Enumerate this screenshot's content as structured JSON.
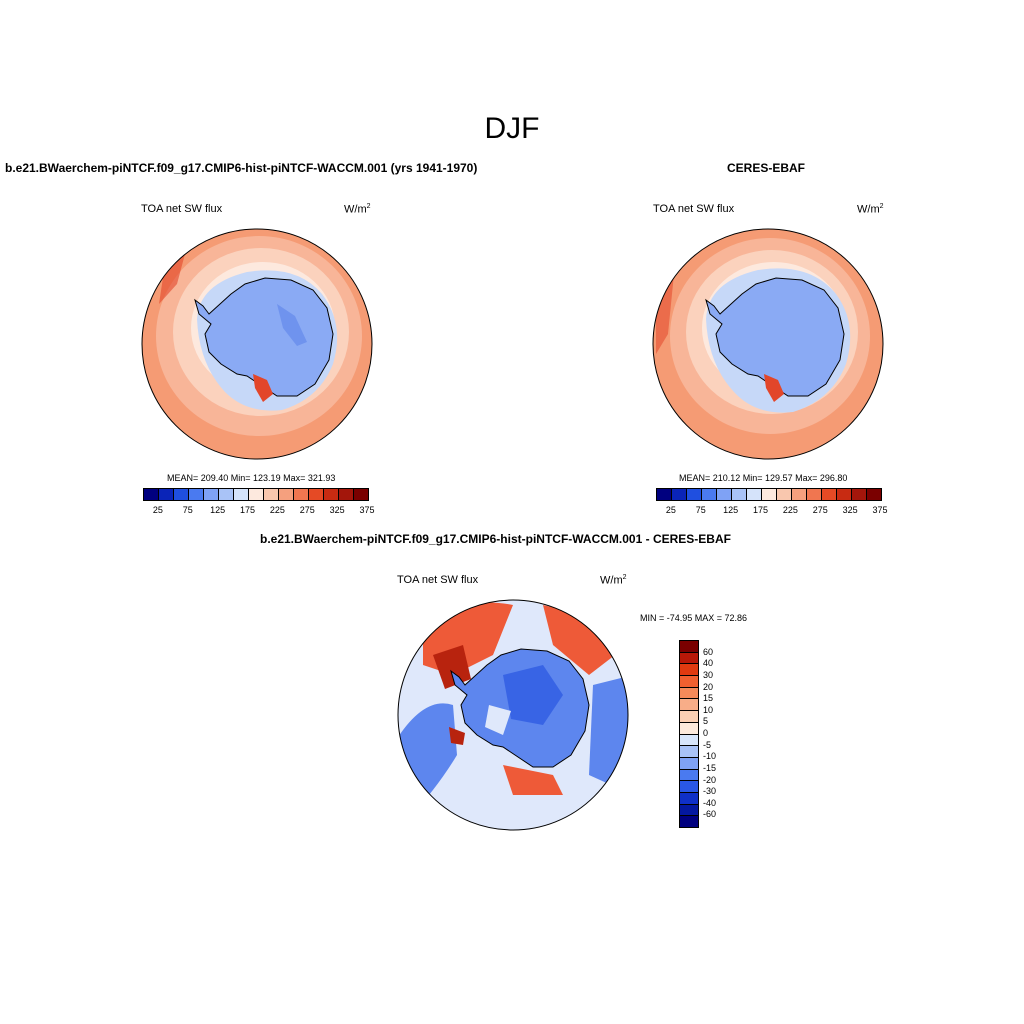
{
  "season": "DJF",
  "panels": [
    {
      "title": "b.e21.BWaerchem-piNTCF.f09_g17.CMIP6-hist-piNTCF-WACCM.001 (yrs 1941-1970)",
      "variable": "TOA net SW flux",
      "units": "W/m",
      "units_exp": "2",
      "stats": "MEAN= 209.40  Min= 123.19  Max= 321.93"
    },
    {
      "title": "CERES-EBAF",
      "variable": "TOA net SW flux",
      "units": "W/m",
      "units_exp": "2",
      "stats": "MEAN= 210.12  Min= 129.57  Max= 296.80"
    },
    {
      "title": "b.e21.BWaerchem-piNTCF.f09_g17.CMIP6-hist-piNTCF-WACCM.001 - CERES-EBAF",
      "variable": "TOA net SW flux",
      "units": "W/m",
      "units_exp": "2",
      "stats": "MIN = -74.95 MAX =  72.86"
    }
  ],
  "colorbars": {
    "abs_ticks": [
      "25",
      "75",
      "125",
      "175",
      "225",
      "275",
      "325",
      "375"
    ],
    "abs_colors": [
      "#00007f",
      "#0a24b8",
      "#1f4fe0",
      "#4a7af0",
      "#7fa2f5",
      "#a9c3f7",
      "#d5e3fa",
      "#fde9de",
      "#f9c7ae",
      "#f5a07e",
      "#f07650",
      "#e54a25",
      "#c82b12",
      "#a3160b",
      "#7a0000"
    ],
    "diff_ticks": [
      "60",
      "40",
      "30",
      "20",
      "15",
      "10",
      "5",
      "0",
      "-5",
      "-10",
      "-15",
      "-20",
      "-30",
      "-40",
      "-60"
    ],
    "diff_colors": [
      "#7a0000",
      "#b81808",
      "#e03a10",
      "#f06030",
      "#f58a5a",
      "#f8ad88",
      "#fbd0b4",
      "#fdeadc",
      "#d8e6fb",
      "#a9c3f7",
      "#7fa2f5",
      "#4a7af0",
      "#2a57e6",
      "#0f30c8",
      "#0418a0",
      "#00007f"
    ]
  },
  "map_colors": {
    "ocean_far": "#f59b74",
    "ocean_mid": "#f8b598",
    "ocean_near": "#fbd2bd",
    "sea_ice": "#fde9de",
    "ice_edge": "#c6d8f8",
    "continent": "#8aaaf4",
    "continent_dark": "#6f93ee",
    "hotspot": "#e2462a",
    "diff_pos": "#ee5a38",
    "diff_pos_strong": "#b8230e",
    "diff_neg": "#5d86ee",
    "diff_neg_strong": "#1f4fe0",
    "diff_neutral": "#dfe8fb"
  }
}
